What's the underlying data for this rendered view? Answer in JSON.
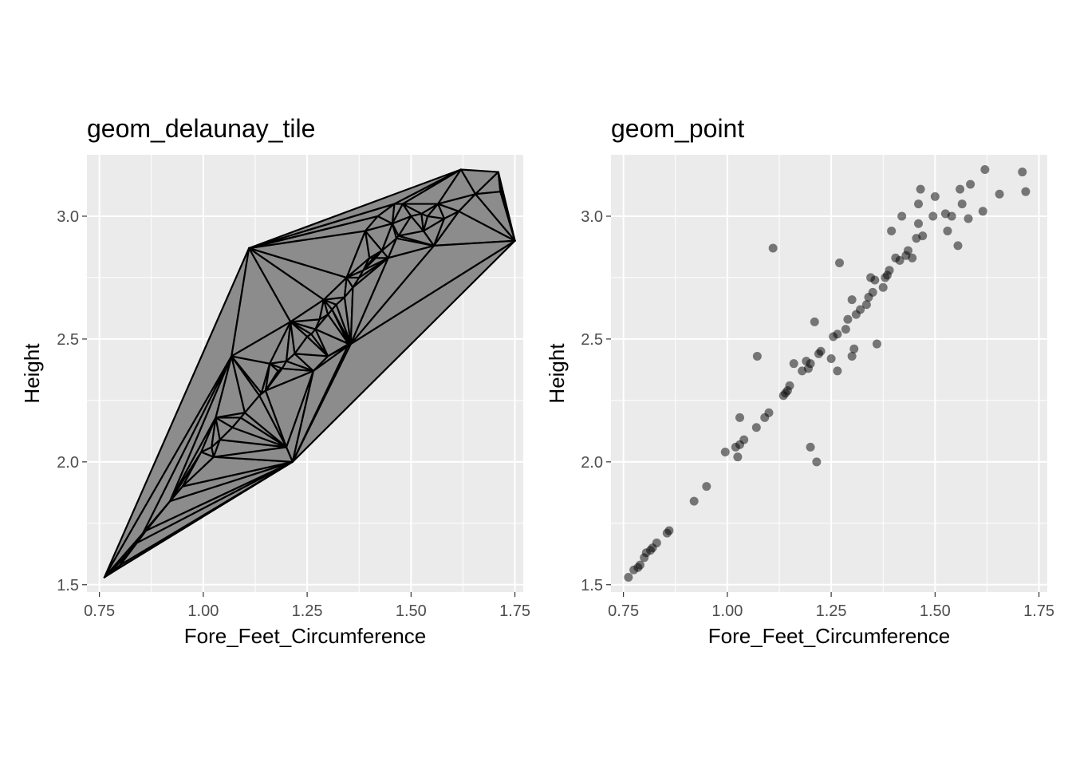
{
  "chart_data": [
    {
      "type": "delaunay-tile",
      "title": "geom_delaunay_tile",
      "xlabel": "Fore_Feet_Circumference",
      "ylabel": "Height",
      "xlim": [
        0.72,
        1.77
      ],
      "ylim": [
        1.47,
        3.25
      ],
      "x_ticks": [
        0.75,
        1.0,
        1.25,
        1.5,
        1.75
      ],
      "x_tick_labels": [
        "0.75",
        "1.00",
        "1.25",
        "1.50",
        "1.75"
      ],
      "y_ticks": [
        1.5,
        2.0,
        2.5,
        3.0
      ],
      "y_tick_labels": [
        "1.5",
        "2.0",
        "2.5",
        "3.0"
      ],
      "grid": true,
      "panel_background": "#ebebeb",
      "fill_color": "#8c8c8c",
      "edge_color": "#000000",
      "x": [
        0.762,
        1.11,
        1.068,
        1.215,
        1.35,
        1.41,
        1.465,
        1.62,
        1.71,
        1.715,
        1.75,
        0.79,
        0.8,
        0.81,
        0.82,
        0.83,
        0.84,
        0.855,
        0.862,
        0.92,
        0.95,
        0.995,
        1.02,
        1.025,
        1.03,
        1.04,
        1.07,
        1.09,
        1.1,
        1.135,
        1.14,
        1.15,
        1.16,
        1.18,
        1.19,
        1.2,
        1.21,
        1.22,
        1.25,
        1.26,
        1.27,
        1.28,
        1.29,
        1.3,
        1.31,
        1.32,
        1.34,
        1.345,
        1.36,
        1.375,
        1.385,
        1.39,
        1.4,
        1.415,
        1.42,
        1.43,
        1.445,
        1.455,
        1.46,
        1.47,
        1.48,
        1.5,
        1.525,
        1.53,
        1.54,
        1.555,
        1.565,
        1.58,
        1.615,
        1.655,
        1.718,
        1.2,
        1.215,
        1.3,
        1.355,
        1.265
      ],
      "y": [
        1.53,
        2.87,
        2.43,
        2.0,
        2.48,
        2.83,
        2.91,
        3.19,
        3.18,
        3.1,
        2.9,
        1.56,
        1.58,
        1.61,
        1.63,
        1.65,
        1.67,
        1.71,
        1.72,
        1.84,
        1.9,
        2.04,
        2.06,
        2.02,
        2.18,
        2.09,
        2.14,
        2.18,
        2.2,
        2.27,
        2.28,
        2.29,
        2.4,
        2.37,
        2.38,
        2.41,
        2.57,
        2.44,
        2.51,
        2.52,
        2.54,
        2.58,
        2.66,
        2.6,
        2.62,
        2.64,
        2.67,
        2.75,
        2.71,
        2.75,
        2.78,
        2.94,
        2.83,
        2.83,
        3.0,
        2.86,
        2.83,
        2.97,
        3.05,
        2.92,
        3.05,
        3.0,
        3.01,
        2.94,
        3.0,
        2.88,
        3.05,
        2.99,
        3.02,
        3.09,
        3.1,
        2.06,
        2.0,
        2.43,
        2.48,
        2.37
      ]
    },
    {
      "type": "scatter",
      "title": "geom_point",
      "xlabel": "Fore_Feet_Circumference",
      "ylabel": "Height",
      "xlim": [
        0.72,
        1.77
      ],
      "ylim": [
        1.47,
        3.25
      ],
      "x_ticks": [
        0.75,
        1.0,
        1.25,
        1.5,
        1.75
      ],
      "x_tick_labels": [
        "0.75",
        "1.00",
        "1.25",
        "1.50",
        "1.75"
      ],
      "y_ticks": [
        1.5,
        2.0,
        2.5,
        3.0
      ],
      "y_tick_labels": [
        "1.5",
        "2.0",
        "2.5",
        "3.0"
      ],
      "grid": true,
      "panel_background": "#ebebeb",
      "point_color": "#000000",
      "point_alpha": 0.5,
      "x": [
        0.762,
        0.775,
        0.785,
        0.79,
        0.8,
        0.805,
        0.815,
        0.82,
        0.83,
        0.855,
        0.86,
        0.92,
        0.95,
        0.995,
        1.02,
        1.025,
        1.03,
        1.03,
        1.04,
        1.07,
        1.072,
        1.09,
        1.1,
        1.11,
        1.135,
        1.14,
        1.145,
        1.15,
        1.16,
        1.18,
        1.19,
        1.195,
        1.2,
        1.2,
        1.21,
        1.215,
        1.22,
        1.225,
        1.25,
        1.255,
        1.265,
        1.265,
        1.27,
        1.285,
        1.29,
        1.3,
        1.3,
        1.305,
        1.31,
        1.32,
        1.335,
        1.34,
        1.345,
        1.35,
        1.355,
        1.36,
        1.375,
        1.38,
        1.385,
        1.39,
        1.395,
        1.405,
        1.415,
        1.42,
        1.43,
        1.435,
        1.445,
        1.455,
        1.46,
        1.46,
        1.465,
        1.47,
        1.495,
        1.5,
        1.525,
        1.53,
        1.54,
        1.555,
        1.56,
        1.565,
        1.58,
        1.585,
        1.615,
        1.62,
        1.655,
        1.71,
        1.718
      ],
      "y": [
        1.53,
        1.56,
        1.57,
        1.58,
        1.61,
        1.63,
        1.64,
        1.65,
        1.67,
        1.71,
        1.72,
        1.84,
        1.9,
        2.04,
        2.06,
        2.02,
        2.18,
        2.07,
        2.09,
        2.14,
        2.43,
        2.18,
        2.2,
        2.87,
        2.27,
        2.28,
        2.29,
        2.31,
        2.4,
        2.37,
        2.41,
        2.38,
        2.4,
        2.06,
        2.57,
        2.0,
        2.44,
        2.45,
        2.42,
        2.51,
        2.52,
        2.37,
        2.81,
        2.54,
        2.58,
        2.66,
        2.43,
        2.46,
        2.6,
        2.62,
        2.64,
        2.67,
        2.75,
        2.69,
        2.74,
        2.48,
        2.71,
        2.75,
        2.76,
        2.78,
        2.94,
        2.83,
        2.82,
        3.0,
        2.84,
        2.86,
        2.83,
        2.91,
        2.97,
        3.05,
        3.11,
        2.92,
        3.0,
        3.08,
        3.01,
        2.94,
        3.0,
        2.88,
        3.11,
        3.05,
        2.99,
        3.13,
        3.02,
        3.19,
        3.09,
        3.18,
        3.1
      ]
    }
  ]
}
